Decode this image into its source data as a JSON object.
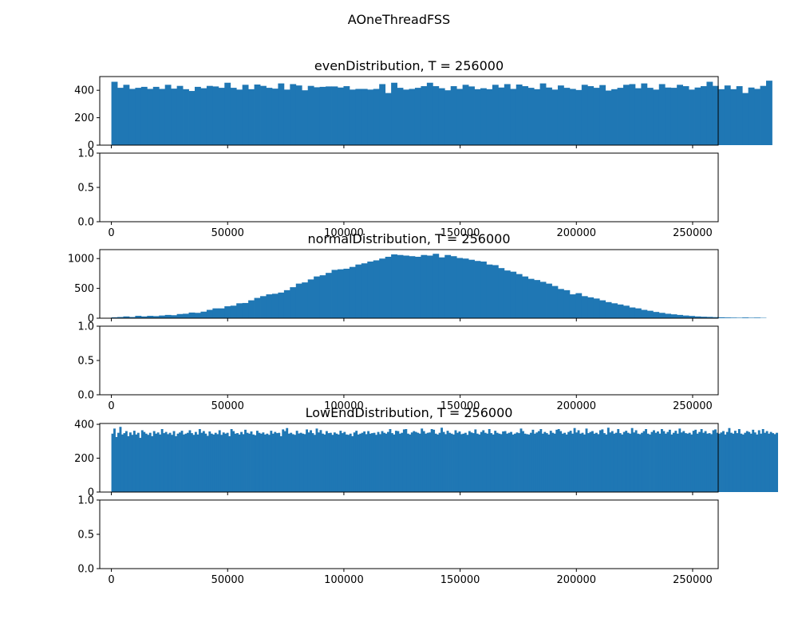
{
  "figure": {
    "suptitle": "AOneThreadFSS"
  },
  "chart_data": [
    {
      "type": "bar",
      "title": "evenDistribution, T = 256000",
      "xlabel": "",
      "ylabel": "",
      "xlim": [
        -5000,
        261000
      ],
      "ylim": [
        0,
        500
      ],
      "yticks": [
        0,
        200,
        400
      ],
      "xticks": [
        0,
        50000,
        100000,
        150000,
        200000,
        250000
      ],
      "show_xtick_labels": false,
      "bin_start": 0,
      "bin_width": 2560,
      "color": "#1f77b4",
      "values": [
        462,
        418,
        440,
        410,
        418,
        425,
        410,
        425,
        410,
        440,
        412,
        432,
        408,
        395,
        425,
        415,
        432,
        428,
        418,
        455,
        418,
        405,
        440,
        408,
        442,
        432,
        418,
        412,
        450,
        405,
        445,
        435,
        400,
        432,
        422,
        425,
        428,
        428,
        420,
        430,
        405,
        410,
        410,
        405,
        410,
        445,
        380,
        455,
        418,
        405,
        410,
        418,
        430,
        455,
        430,
        415,
        400,
        430,
        410,
        440,
        428,
        408,
        415,
        408,
        440,
        420,
        445,
        410,
        442,
        430,
        418,
        408,
        450,
        420,
        405,
        435,
        418,
        410,
        402,
        440,
        430,
        418,
        438,
        398,
        408,
        418,
        440,
        445,
        415,
        450,
        418,
        405,
        445,
        420,
        418,
        440,
        430,
        405,
        420,
        430,
        462,
        432,
        408,
        435,
        408,
        430,
        380,
        420,
        410,
        432,
        470
      ]
    },
    {
      "type": "empty",
      "xlim": [
        -5000,
        261000
      ],
      "ylim": [
        0,
        1
      ],
      "yticks": [
        0.0,
        0.5,
        1.0
      ],
      "xticks": [
        0,
        50000,
        100000,
        150000,
        200000,
        250000
      ],
      "show_xtick_labels": true
    },
    {
      "type": "bar",
      "title": "normalDistribution, T = 256000",
      "xlabel": "",
      "ylabel": "",
      "xlim": [
        -5000,
        261000
      ],
      "ylim": [
        0,
        1150
      ],
      "yticks": [
        0,
        500,
        1000
      ],
      "xticks": [
        0,
        50000,
        100000,
        150000,
        200000,
        250000
      ],
      "show_xtick_labels": false,
      "bin_start": 0,
      "bin_width": 2560,
      "color": "#1f77b4",
      "values": [
        15,
        20,
        30,
        20,
        40,
        30,
        40,
        35,
        45,
        55,
        50,
        70,
        75,
        95,
        90,
        110,
        140,
        165,
        165,
        200,
        210,
        250,
        255,
        300,
        340,
        370,
        400,
        410,
        430,
        470,
        520,
        580,
        600,
        650,
        700,
        720,
        760,
        810,
        820,
        830,
        860,
        900,
        920,
        950,
        970,
        1000,
        1030,
        1070,
        1060,
        1050,
        1040,
        1030,
        1060,
        1050,
        1080,
        1020,
        1060,
        1040,
        1010,
        1000,
        980,
        960,
        950,
        900,
        890,
        840,
        800,
        780,
        740,
        700,
        660,
        640,
        610,
        580,
        540,
        490,
        470,
        400,
        420,
        370,
        350,
        330,
        300,
        270,
        250,
        230,
        210,
        180,
        165,
        140,
        125,
        105,
        90,
        75,
        65,
        55,
        45,
        38,
        30,
        25,
        22,
        18,
        15,
        12,
        10,
        8,
        12,
        8,
        10,
        6
      ]
    },
    {
      "type": "empty",
      "xlim": [
        -5000,
        261000
      ],
      "ylim": [
        0,
        1
      ],
      "yticks": [
        0.0,
        0.5,
        1.0
      ],
      "xticks": [
        0,
        50000,
        100000,
        150000,
        200000,
        250000
      ],
      "show_xtick_labels": true
    },
    {
      "type": "bar",
      "title": "LowEndDistribution, T = 256000",
      "xlabel": "",
      "ylabel": "",
      "xlim": [
        -5000,
        261000
      ],
      "ylim": [
        0,
        405
      ],
      "yticks": [
        0,
        200,
        400
      ],
      "xticks": [
        0,
        50000,
        100000,
        150000,
        200000,
        250000
      ],
      "show_xtick_labels": false,
      "bin_start": 0,
      "bin_width": 853,
      "color": "#1f77b4",
      "values": [
        345,
        375,
        325,
        350,
        385,
        340,
        348,
        360,
        330,
        352,
        338,
        362,
        340,
        350,
        320,
        365,
        355,
        345,
        338,
        350,
        330,
        360,
        345,
        352,
        340,
        372,
        348,
        355,
        342,
        350,
        338,
        360,
        330,
        345,
        352,
        362,
        340,
        345,
        350,
        365,
        348,
        338,
        355,
        340,
        372,
        350,
        360,
        345,
        332,
        358,
        345,
        340,
        350,
        342,
        365,
        338,
        352,
        345,
        350,
        330,
        372,
        360,
        345,
        348,
        340,
        355,
        342,
        368,
        350,
        345,
        358,
        340,
        336,
        362,
        350,
        345,
        352,
        340,
        345,
        338,
        362,
        345,
        355,
        348,
        350,
        330,
        370,
        360,
        378,
        345,
        350,
        342,
        338,
        362,
        346,
        350,
        345,
        342,
        370,
        352,
        365,
        348,
        338,
        375,
        352,
        366,
        345,
        340,
        360,
        348,
        350,
        338,
        352,
        345,
        340,
        362,
        348,
        355,
        340,
        338,
        345,
        330,
        352,
        362,
        340,
        345,
        350,
        358,
        342,
        360,
        345,
        348,
        350,
        338,
        355,
        342,
        360,
        350,
        345,
        355,
        372,
        348,
        340,
        362,
        360,
        345,
        350,
        370,
        372,
        345,
        340,
        352,
        360,
        355,
        350,
        345,
        375,
        360,
        345,
        350,
        352,
        372,
        368,
        345,
        340,
        350,
        380,
        355,
        342,
        362,
        350,
        345,
        340,
        365,
        350,
        358,
        342,
        345,
        350,
        338,
        360,
        352,
        348,
        370,
        345,
        340,
        355,
        365,
        350,
        345,
        372,
        348,
        340,
        362,
        350,
        345,
        342,
        358,
        360,
        345,
        350,
        355,
        340,
        345,
        352,
        348,
        375,
        360,
        345,
        342,
        340,
        350,
        368,
        345,
        352,
        360,
        372,
        345,
        355,
        348,
        340,
        362,
        350,
        345,
        368,
        372,
        360,
        345,
        350,
        340,
        355,
        362,
        345,
        378,
        352,
        365,
        345,
        350,
        340,
        375,
        348,
        355,
        360,
        345,
        350,
        342,
        365,
        370,
        348,
        340,
        380,
        352,
        360,
        345,
        350,
        372,
        348,
        340,
        355,
        362,
        350,
        345,
        378,
        352,
        365,
        345,
        342,
        350,
        360,
        372,
        345,
        340,
        355,
        365,
        350,
        358,
        345,
        372,
        360,
        345,
        355,
        368,
        340,
        350,
        362,
        345,
        375,
        352,
        360,
        348,
        345,
        350,
        340,
        362,
        368,
        345,
        355,
        372,
        350,
        360,
        345,
        348,
        342,
        365,
        370,
        350,
        345,
        352,
        360,
        340,
        355,
        378,
        350,
        345,
        362,
        348,
        372,
        345,
        340,
        350,
        360,
        355,
        345,
        368,
        352,
        340,
        365,
        345,
        372,
        350,
        360,
        345,
        355,
        348,
        342,
        350
      ]
    },
    {
      "type": "empty",
      "xlim": [
        -5000,
        261000
      ],
      "ylim": [
        0,
        1
      ],
      "yticks": [
        0.0,
        0.5,
        1.0
      ],
      "xticks": [
        0,
        50000,
        100000,
        150000,
        200000,
        250000
      ],
      "show_xtick_labels": true
    }
  ]
}
